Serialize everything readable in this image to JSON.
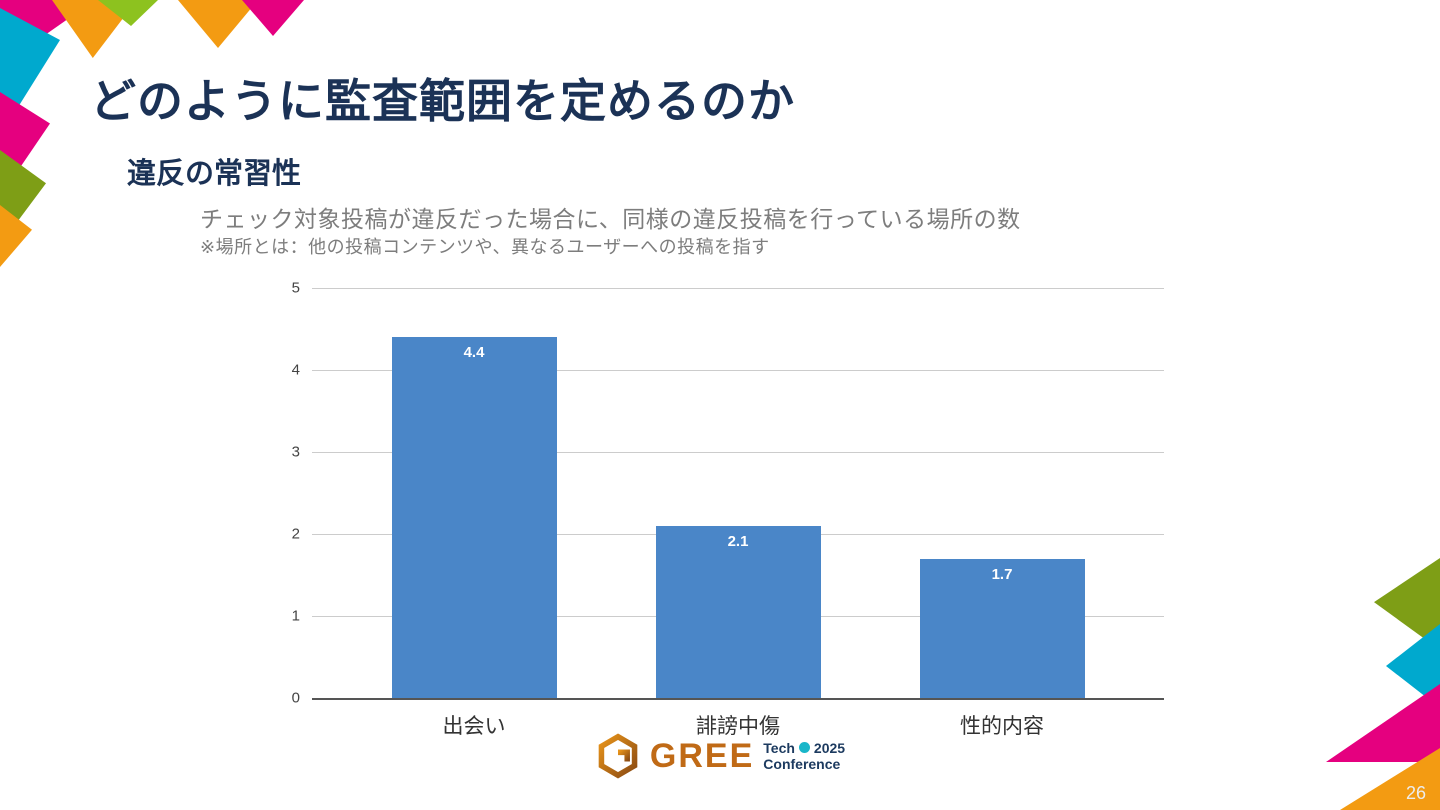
{
  "slide": {
    "title": "どのように監査範囲を定めるのか",
    "subtitle": "違反の常習性",
    "description": "チェック対象投稿が違反だった場合に、同様の違反投稿を行っている場所の数",
    "note": "※場所とは：他の投稿コンテンツや、異なるユーザーへの投稿を指す",
    "page_number": "26"
  },
  "chart_data": {
    "type": "bar",
    "categories": [
      "出会い",
      "誹謗中傷",
      "性的内容"
    ],
    "values": [
      4.4,
      2.1,
      1.7
    ],
    "value_labels": [
      "4.4",
      "2.1",
      "1.7"
    ],
    "title": "",
    "xlabel": "",
    "ylabel": "",
    "ylim": [
      0,
      5
    ],
    "yticks": [
      0,
      1,
      2,
      3,
      4,
      5
    ],
    "grid": true,
    "legend": false,
    "bar_color": "#4a86c8"
  },
  "logo": {
    "brand": "GREE",
    "line1": "Tech",
    "year": "2025",
    "line2": "Conference"
  },
  "palette": {
    "title_navy": "#1b3256",
    "body_gray": "#7d7d7d",
    "bar_blue": "#4a86c8",
    "decor_pink": "#e5007f",
    "decor_orange": "#f39b12",
    "decor_cyan": "#00a9ce",
    "decor_olive": "#7e9e16",
    "decor_lime": "#8dc21f",
    "logo_brand": "#c06a16",
    "logo_navy": "#1c3a5f",
    "logo_teal": "#19b6c9"
  }
}
